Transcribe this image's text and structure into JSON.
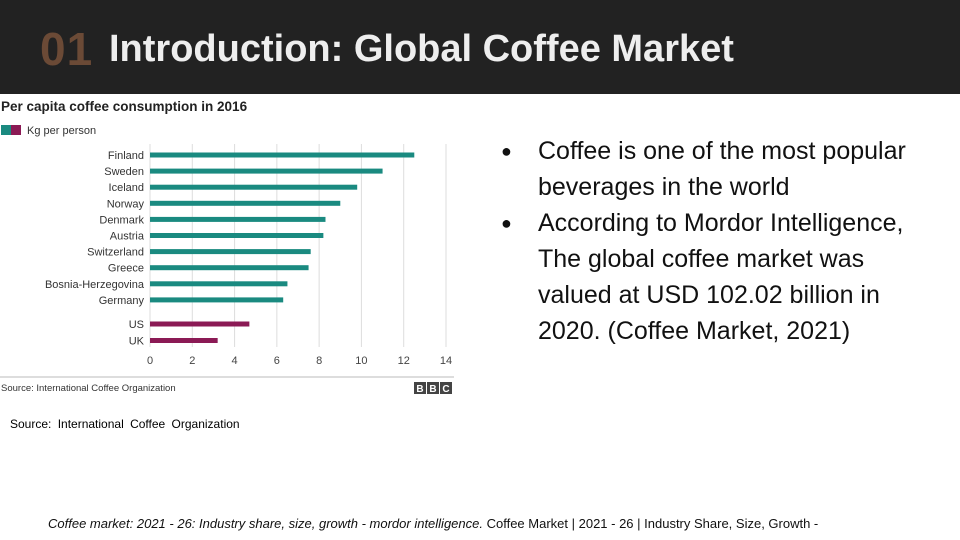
{
  "header": {
    "number": "01",
    "title": "Introduction: Global Coffee Market"
  },
  "chart_data": {
    "type": "bar",
    "orientation": "horizontal",
    "title": "Per capita coffee consumption in 2016",
    "legend_label": "Kg per person",
    "legend_colors": [
      "#1a8a80",
      "#8b1a55"
    ],
    "categories": [
      "Finland",
      "Sweden",
      "Iceland",
      "Norway",
      "Denmark",
      "Austria",
      "Switzerland",
      "Greece",
      "Bosnia-Herzegovina",
      "Germany",
      "US",
      "UK"
    ],
    "values": [
      12.5,
      11.0,
      9.8,
      9.0,
      8.3,
      8.2,
      7.6,
      7.5,
      6.5,
      6.3,
      4.7,
      3.2
    ],
    "colors": [
      "#1a8a80",
      "#1a8a80",
      "#1a8a80",
      "#1a8a80",
      "#1a8a80",
      "#1a8a80",
      "#1a8a80",
      "#1a8a80",
      "#1a8a80",
      "#1a8a80",
      "#8b1a55",
      "#8b1a55"
    ],
    "xlim": [
      0,
      14
    ],
    "xticks": [
      "0",
      "2",
      "4",
      "6",
      "8",
      "10",
      "12",
      "14"
    ],
    "grid": "vertical",
    "source": "Source: International Coffee Organization",
    "logo": "BBC"
  },
  "caption": "Source: International Coffee Organization",
  "bullets": [
    "Coffee is one of the most popular beverages in the world",
    "According to Mordor Intelligence, The global coffee market was valued at USD 102.02 billion in 2020. (Coffee Market, 2021)"
  ],
  "bullet_symbol": "●",
  "footer": {
    "italic_part": "Coffee market: 2021 - 26: Industry share, size, growth - mordor intelligence.",
    "plain_part": " Coffee Market | 2021 - 26 | Industry Share, Size, Growth -"
  }
}
